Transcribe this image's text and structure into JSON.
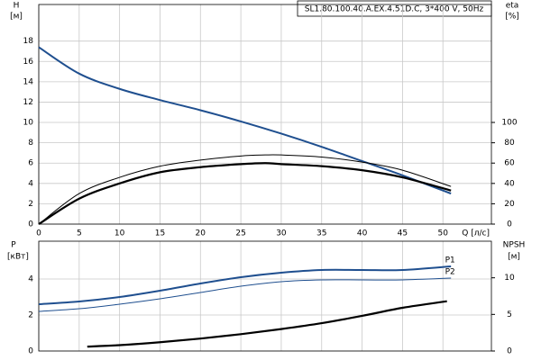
{
  "chart_data": [
    {
      "type": "line",
      "title": "SL1.80.100.40.A.EX.4.51D.C, 3*400 V, 50Hz",
      "ylabel": [
        "H",
        "[м]"
      ],
      "y2label": [
        "eta",
        "[%]"
      ],
      "xlabel": "Q [л/с]",
      "xlim": [
        0,
        56
      ],
      "xticks": [
        0,
        5,
        10,
        15,
        20,
        25,
        30,
        35,
        40,
        45,
        50
      ],
      "ylim": [
        0,
        21.6
      ],
      "yticks": [
        0,
        2,
        4,
        6,
        8,
        10,
        12,
        14,
        16,
        18
      ],
      "y2lim": [
        0,
        216
      ],
      "y2ticks": [
        0,
        20,
        40,
        60,
        80,
        100
      ],
      "grid": true,
      "series": [
        {
          "color": "#1f4f8f",
          "line_width": 2,
          "x": [
            0,
            5,
            10,
            15,
            20,
            25,
            30,
            35,
            40,
            45,
            51
          ],
          "values": [
            17.4,
            14.8,
            13.3,
            12.2,
            11.2,
            10.1,
            8.9,
            7.6,
            6.2,
            4.8,
            3.0
          ]
        },
        {
          "color": "#000000",
          "line_width": 1,
          "axis": "y2",
          "x": [
            0,
            5,
            10,
            15,
            20,
            25,
            28,
            30,
            35,
            40,
            45,
            51
          ],
          "values": [
            0,
            30,
            46,
            57,
            63,
            67,
            68,
            68,
            66,
            61,
            53,
            37
          ]
        },
        {
          "color": "#000000",
          "line_width": 2.2,
          "axis": "y2",
          "x": [
            0,
            5,
            10,
            15,
            20,
            25,
            28,
            30,
            35,
            40,
            45,
            51
          ],
          "values": [
            0,
            25,
            40,
            51,
            56,
            59,
            60,
            59,
            57,
            53,
            46,
            33
          ]
        }
      ]
    },
    {
      "type": "line",
      "ylabel": [
        "P",
        "[кВт]"
      ],
      "y2label": [
        "NPSH",
        "[м]"
      ],
      "xlim": [
        0,
        56
      ],
      "xticks": [
        0,
        5,
        10,
        15,
        20,
        25,
        30,
        35,
        40,
        45,
        50
      ],
      "ylim": [
        0,
        6.1
      ],
      "yticks": [
        0,
        2,
        4
      ],
      "y2lim": [
        0,
        15
      ],
      "y2ticks": [
        0,
        5,
        10
      ],
      "grid": true,
      "series": [
        {
          "name": "P1",
          "color": "#1f4f8f",
          "line_width": 2,
          "x": [
            0,
            5,
            10,
            15,
            20,
            25,
            30,
            35,
            40,
            45,
            51
          ],
          "values": [
            2.6,
            2.75,
            3.0,
            3.35,
            3.75,
            4.1,
            4.35,
            4.5,
            4.5,
            4.5,
            4.7
          ]
        },
        {
          "name": "P2",
          "color": "#1f4f8f",
          "line_width": 1,
          "x": [
            0,
            5,
            10,
            15,
            20,
            25,
            30,
            35,
            40,
            45,
            51
          ],
          "values": [
            2.2,
            2.35,
            2.6,
            2.9,
            3.25,
            3.6,
            3.85,
            3.95,
            3.95,
            3.95,
            4.05
          ]
        },
        {
          "color": "#000000",
          "line_width": 2.2,
          "axis": "y2",
          "x": [
            6,
            10,
            15,
            20,
            25,
            30,
            35,
            40,
            45,
            50.5
          ],
          "values": [
            0.6,
            0.8,
            1.2,
            1.7,
            2.3,
            3.0,
            3.8,
            4.8,
            5.9,
            6.8
          ]
        }
      ]
    }
  ]
}
